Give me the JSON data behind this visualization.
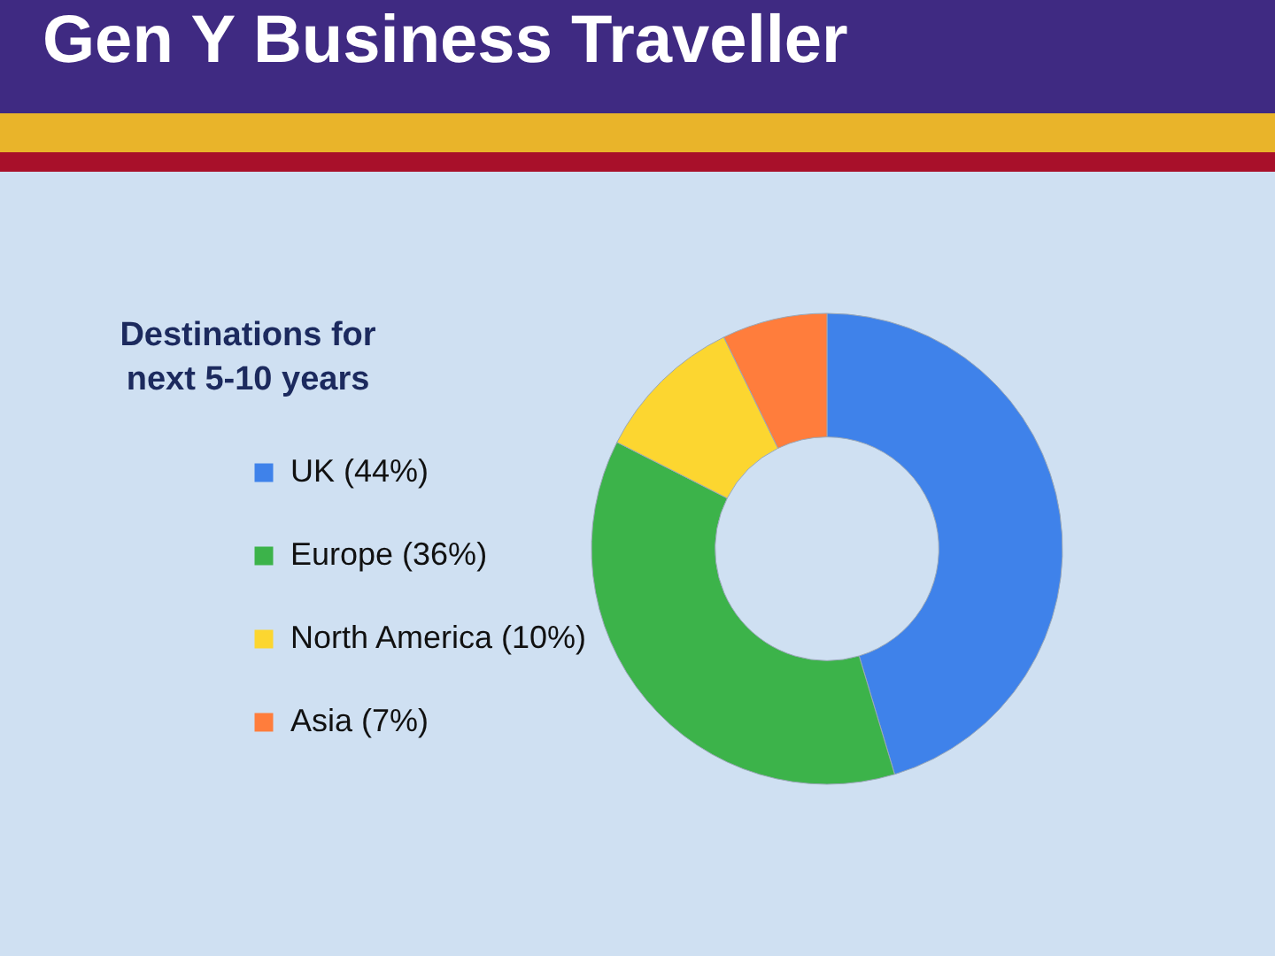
{
  "chart_data": {
    "type": "donut",
    "title": "Gen Y Business Traveller",
    "legend_title": "Destinations for next 5-10 years",
    "categories": [
      "UK (44%)",
      "Europe (36%)",
      "North America (10%)",
      "Asia (7%)"
    ],
    "values": [
      44,
      36,
      10,
      7
    ],
    "colors": [
      "#3f82ea",
      "#3cb34a",
      "#fcd630",
      "#ff7d3c"
    ],
    "legend": "left"
  }
}
